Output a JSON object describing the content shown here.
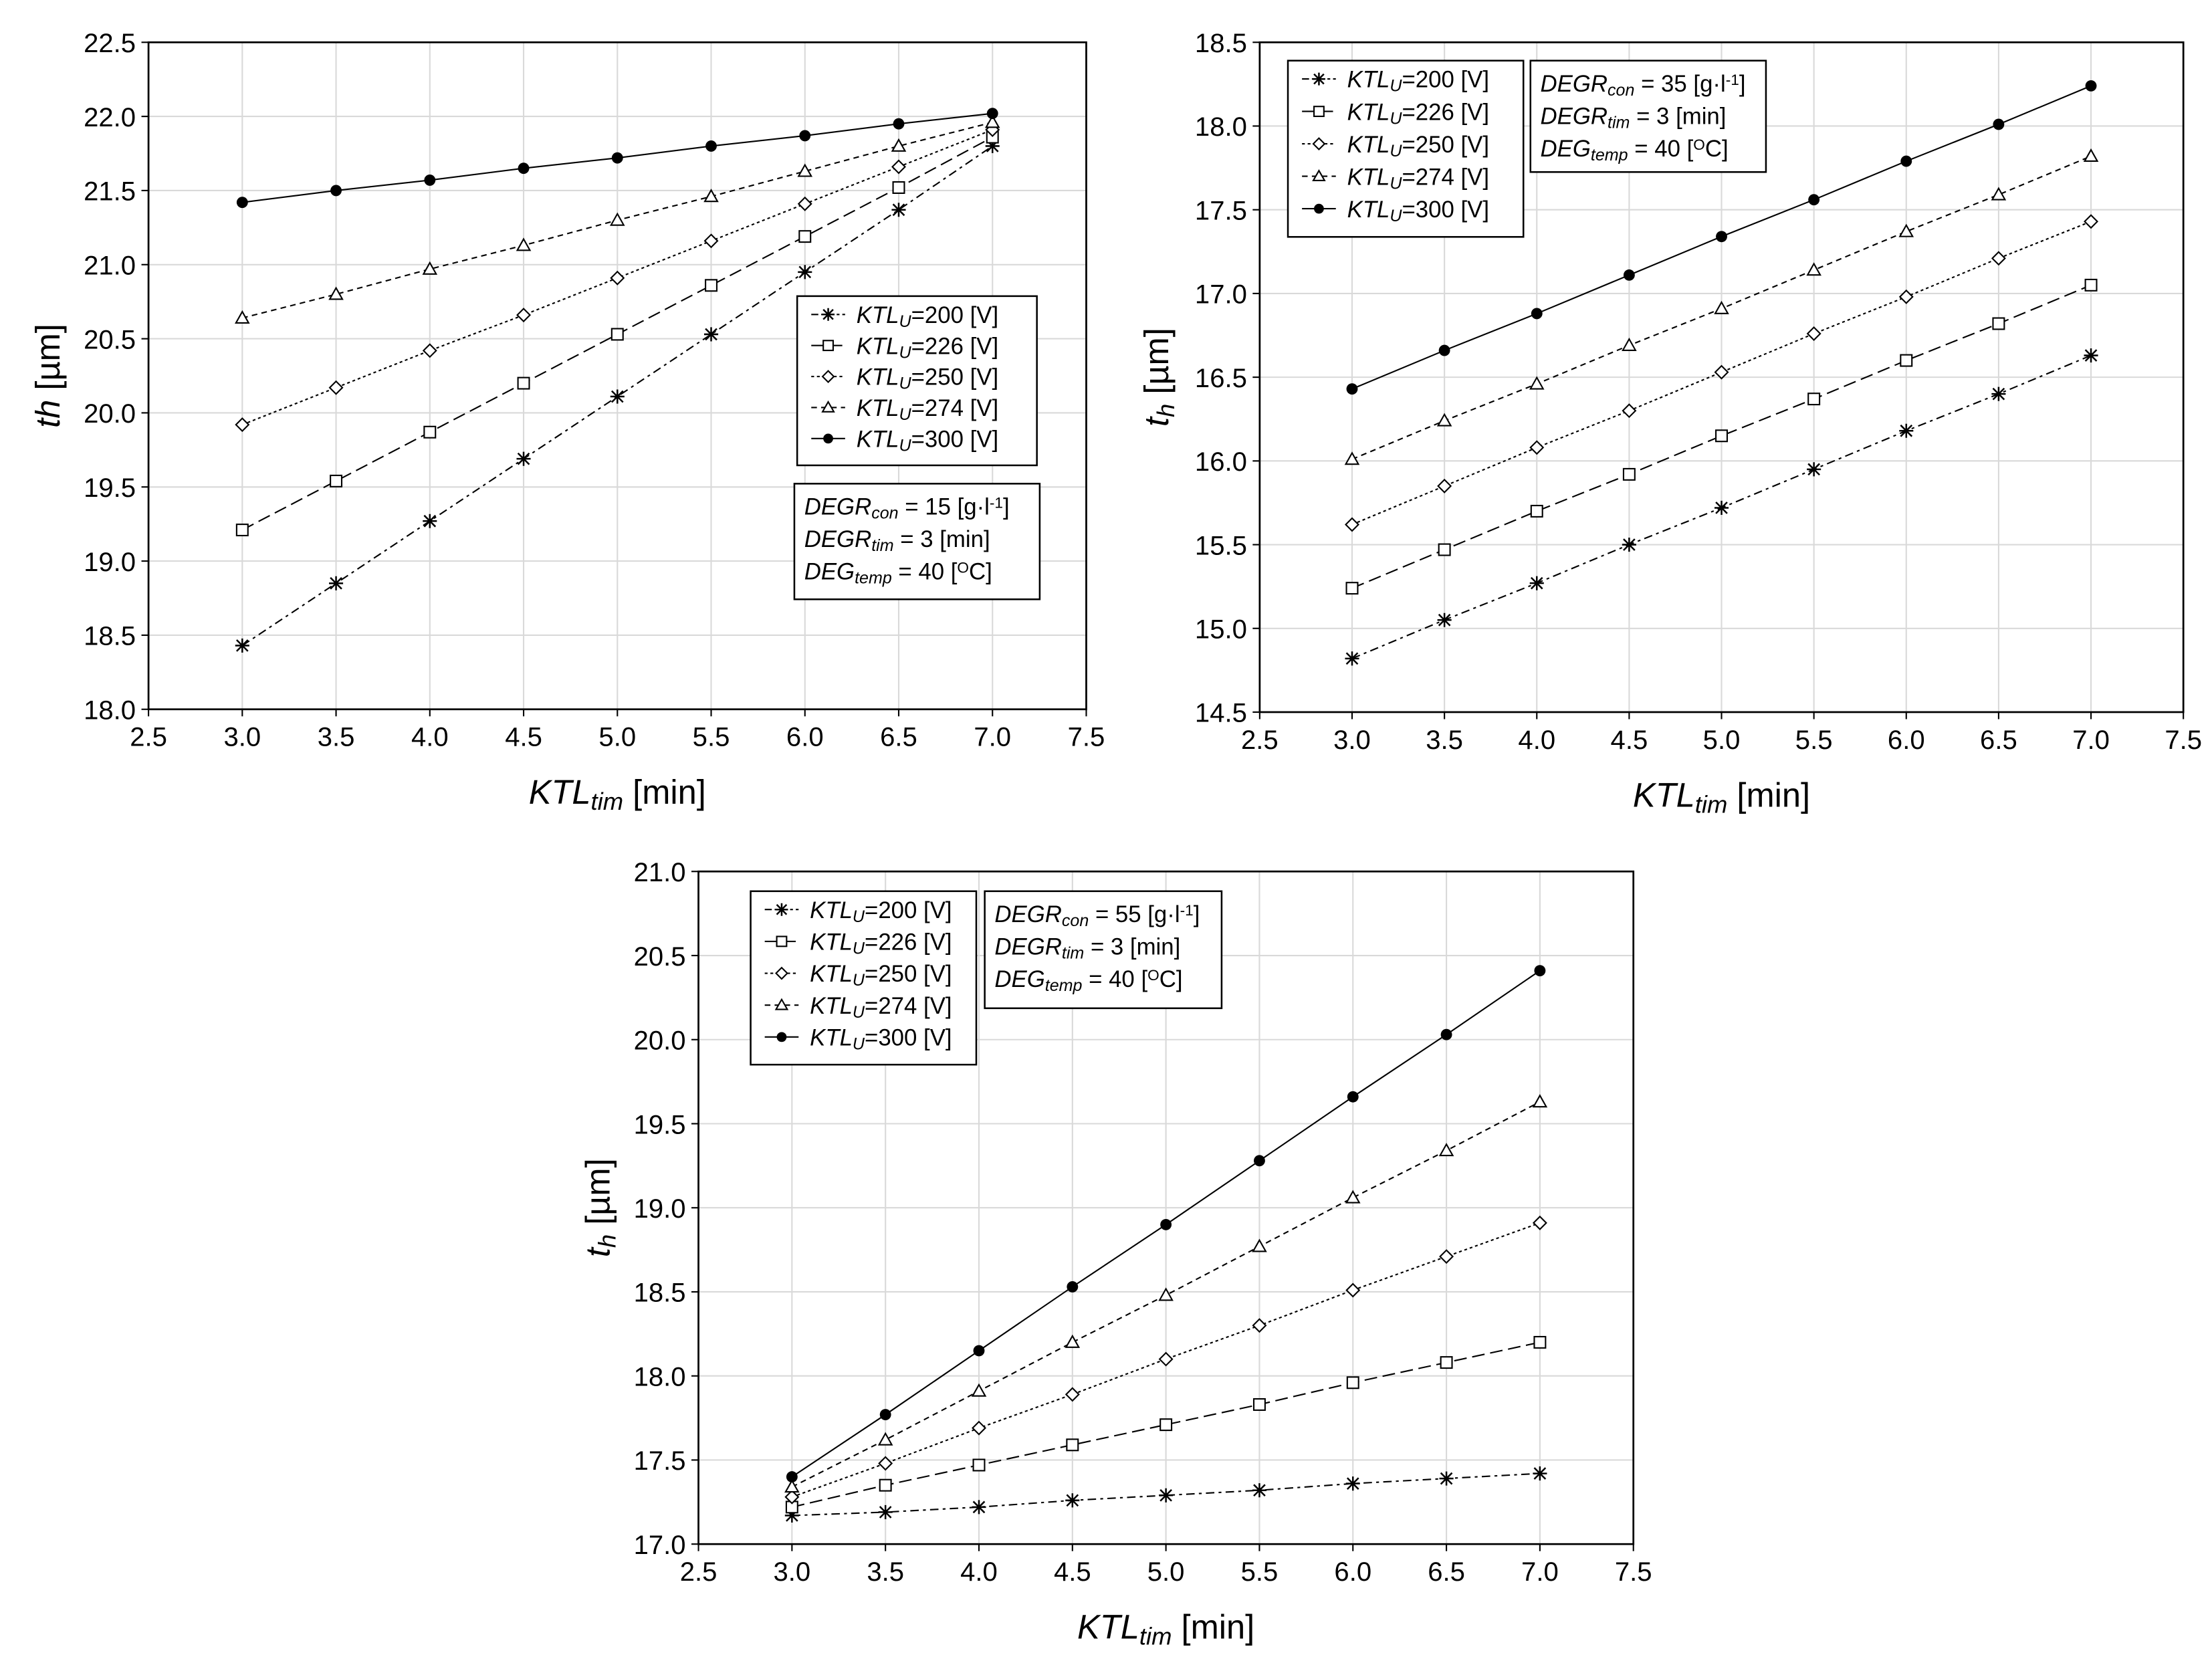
{
  "styles": {
    "200": {
      "marker": "asterisk",
      "dash": "6 3 2 3"
    },
    "226": {
      "marker": "square",
      "dash": "9 4"
    },
    "250": {
      "marker": "diamond",
      "dash": "2 2"
    },
    "274": {
      "marker": "triangle",
      "dash": "4 3"
    },
    "300": {
      "marker": "filled-circle",
      "dash": ""
    }
  },
  "chart_data": [
    {
      "type": "line",
      "xlabel": [
        {
          "t": "KTL",
          "s": "i"
        },
        {
          "t": "tim",
          "s": "isub"
        },
        {
          "t": "  [min]",
          "s": "n"
        }
      ],
      "ylabel": [
        {
          "t": "th",
          "s": "i"
        },
        {
          "t": " [µm]",
          "s": "n"
        }
      ],
      "xlim": [
        2.5,
        7.5
      ],
      "ylim": [
        18.0,
        22.5
      ],
      "xticks": [
        "2.5",
        "3.0",
        "3.5",
        "4.0",
        "4.5",
        "5.0",
        "5.5",
        "6.0",
        "6.5",
        "7.0",
        "7.5"
      ],
      "yticks": [
        "18.0",
        "18.5",
        "19.0",
        "19.5",
        "20.0",
        "20.5",
        "21.0",
        "21.5",
        "22.0",
        "22.5"
      ],
      "grid": true,
      "x": [
        3.0,
        3.5,
        4.0,
        4.5,
        5.0,
        5.5,
        6.0,
        6.5,
        7.0
      ],
      "series": [
        {
          "key": "200",
          "name": "KTL_U=200 [V]",
          "values": [
            18.43,
            18.85,
            19.27,
            19.69,
            20.11,
            20.53,
            20.95,
            21.37,
            21.8
          ]
        },
        {
          "key": "226",
          "name": "KTL_U=226 [V]",
          "values": [
            19.21,
            19.54,
            19.87,
            20.2,
            20.53,
            20.86,
            21.19,
            21.52,
            21.86
          ]
        },
        {
          "key": "250",
          "name": "KTL_U=250 [V]",
          "values": [
            19.92,
            20.17,
            20.42,
            20.66,
            20.91,
            21.16,
            21.41,
            21.66,
            21.91
          ]
        },
        {
          "key": "274",
          "name": "KTL_U=274 [V]",
          "values": [
            20.64,
            20.8,
            20.97,
            21.13,
            21.3,
            21.46,
            21.63,
            21.8,
            21.96
          ]
        },
        {
          "key": "300",
          "name": "KTL_U=300 [V]",
          "values": [
            21.42,
            21.5,
            21.57,
            21.65,
            21.72,
            21.8,
            21.87,
            21.95,
            22.02
          ]
        }
      ],
      "legend_placement": "center-right",
      "legend": [
        [
          {
            "t": "KTL",
            "s": "i"
          },
          {
            "t": "U",
            "s": "isub"
          },
          {
            "t": "=200  [V]",
            "s": "n"
          }
        ],
        [
          {
            "t": "KTL",
            "s": "i"
          },
          {
            "t": "U",
            "s": "isub"
          },
          {
            "t": "=226  [V]",
            "s": "n"
          }
        ],
        [
          {
            "t": "KTL",
            "s": "i"
          },
          {
            "t": "U",
            "s": "isub"
          },
          {
            "t": "=250  [V]",
            "s": "n"
          }
        ],
        [
          {
            "t": "KTL",
            "s": "i"
          },
          {
            "t": "U",
            "s": "isub"
          },
          {
            "t": "=274 [V]",
            "s": "n"
          }
        ],
        [
          {
            "t": "KTL",
            "s": "i"
          },
          {
            "t": "U",
            "s": "isub"
          },
          {
            "t": "=300  [V]",
            "s": "n"
          }
        ]
      ],
      "params": [
        [
          {
            "t": "DEGR",
            "s": "i"
          },
          {
            "t": "con",
            "s": "isub"
          },
          {
            "t": " = 15 [g·l",
            "s": "n"
          },
          {
            "t": "-1",
            "s": "sup"
          },
          {
            "t": "]",
            "s": "n"
          }
        ],
        [
          {
            "t": "DEGR",
            "s": "i"
          },
          {
            "t": "tim",
            "s": "isub"
          },
          {
            "t": " = 3 [min]",
            "s": "n"
          }
        ],
        [
          {
            "t": "DEG",
            "s": "i"
          },
          {
            "t": "temp",
            "s": "isub"
          },
          {
            "t": " = 40 [",
            "s": "n"
          },
          {
            "t": "O",
            "s": "sup"
          },
          {
            "t": "C]",
            "s": "n"
          }
        ]
      ]
    },
    {
      "type": "line",
      "xlabel": [
        {
          "t": "KTL",
          "s": "i"
        },
        {
          "t": "tim",
          "s": "isub"
        },
        {
          "t": "  [min]",
          "s": "n"
        }
      ],
      "ylabel": [
        {
          "t": "t",
          "s": "i"
        },
        {
          "t": "h",
          "s": "isub"
        },
        {
          "t": " [µm]",
          "s": "n"
        }
      ],
      "xlim": [
        2.5,
        7.5
      ],
      "ylim": [
        14.5,
        18.5
      ],
      "xticks": [
        "2.5",
        "3.0",
        "3.5",
        "4.0",
        "4.5",
        "5.0",
        "5.5",
        "6.0",
        "6.5",
        "7.0",
        "7.5"
      ],
      "yticks": [
        "14.5",
        "15.0",
        "15.5",
        "16.0",
        "16.5",
        "17.0",
        "17.5",
        "18.0",
        "18.5"
      ],
      "grid": true,
      "x": [
        3.0,
        3.5,
        4.0,
        4.5,
        5.0,
        5.5,
        6.0,
        6.5,
        7.0
      ],
      "series": [
        {
          "key": "200",
          "name": "KTL_U=200 [V]",
          "values": [
            14.82,
            15.05,
            15.27,
            15.5,
            15.72,
            15.95,
            16.18,
            16.4,
            16.63
          ]
        },
        {
          "key": "226",
          "name": "KTL_U=226 [V]",
          "values": [
            15.24,
            15.47,
            15.7,
            15.92,
            16.15,
            16.37,
            16.6,
            16.82,
            17.05
          ]
        },
        {
          "key": "250",
          "name": "KTL_U=250 [V]",
          "values": [
            15.62,
            15.85,
            16.08,
            16.3,
            16.53,
            16.76,
            16.98,
            17.21,
            17.43
          ]
        },
        {
          "key": "274",
          "name": "KTL_U=274 [V]",
          "values": [
            16.01,
            16.24,
            16.46,
            16.69,
            16.91,
            17.14,
            17.37,
            17.59,
            17.82
          ]
        },
        {
          "key": "300",
          "name": "KTL_U=300 [V]",
          "values": [
            16.43,
            16.66,
            16.88,
            17.11,
            17.34,
            17.56,
            17.79,
            18.01,
            18.24
          ]
        }
      ],
      "legend_placement": "top-left",
      "legend": [
        [
          {
            "t": "KTL",
            "s": "i"
          },
          {
            "t": "U",
            "s": "isub"
          },
          {
            "t": "=200  [V]",
            "s": "n"
          }
        ],
        [
          {
            "t": "KTL",
            "s": "i"
          },
          {
            "t": "U",
            "s": "isub"
          },
          {
            "t": "=226  [V]",
            "s": "n"
          }
        ],
        [
          {
            "t": "KTL",
            "s": "i"
          },
          {
            "t": "U",
            "s": "isub"
          },
          {
            "t": "=250  [V]",
            "s": "n"
          }
        ],
        [
          {
            "t": "KTL",
            "s": "i"
          },
          {
            "t": "U",
            "s": "isub"
          },
          {
            "t": "=274 [V]",
            "s": "n"
          }
        ],
        [
          {
            "t": "KTL",
            "s": "i"
          },
          {
            "t": "U",
            "s": "isub"
          },
          {
            "t": "=300  [V]",
            "s": "n"
          }
        ]
      ],
      "params": [
        [
          {
            "t": "DEGR",
            "s": "i"
          },
          {
            "t": "con",
            "s": "isub"
          },
          {
            "t": " = 35 [g·l",
            "s": "n"
          },
          {
            "t": "-1",
            "s": "sup"
          },
          {
            "t": "]",
            "s": "n"
          }
        ],
        [
          {
            "t": "DEGR",
            "s": "i"
          },
          {
            "t": "tim",
            "s": "isub"
          },
          {
            "t": " = 3 [min]",
            "s": "n"
          }
        ],
        [
          {
            "t": "DEG",
            "s": "i"
          },
          {
            "t": "temp",
            "s": "isub"
          },
          {
            "t": " = 40 [",
            "s": "n"
          },
          {
            "t": "O",
            "s": "sup"
          },
          {
            "t": "C]",
            "s": "n"
          }
        ]
      ]
    },
    {
      "type": "line",
      "xlabel": [
        {
          "t": "KTL",
          "s": "i"
        },
        {
          "t": "tim",
          "s": "isub"
        },
        {
          "t": "  [min]",
          "s": "n"
        }
      ],
      "ylabel": [
        {
          "t": "t",
          "s": "i"
        },
        {
          "t": "h",
          "s": "isub"
        },
        {
          "t": " [µm]",
          "s": "n"
        }
      ],
      "xlim": [
        2.5,
        7.5
      ],
      "ylim": [
        17.0,
        21.0
      ],
      "xticks": [
        "2.5",
        "3.0",
        "3.5",
        "4.0",
        "4.5",
        "5.0",
        "5.5",
        "6.0",
        "6.5",
        "7.0",
        "7.5"
      ],
      "yticks": [
        "17.0",
        "17.5",
        "18.0",
        "18.5",
        "19.0",
        "19.5",
        "20.0",
        "20.5",
        "21.0"
      ],
      "grid": true,
      "x": [
        3.0,
        3.5,
        4.0,
        4.5,
        5.0,
        5.5,
        6.0,
        6.5,
        7.0
      ],
      "series": [
        {
          "key": "200",
          "name": "KTL_U=200 [V]",
          "values": [
            17.17,
            17.19,
            17.22,
            17.26,
            17.29,
            17.32,
            17.36,
            17.39,
            17.42
          ]
        },
        {
          "key": "226",
          "name": "KTL_U=226 [V]",
          "values": [
            17.22,
            17.35,
            17.47,
            17.59,
            17.71,
            17.83,
            17.96,
            18.08,
            18.2
          ]
        },
        {
          "key": "250",
          "name": "KTL_U=250 [V]",
          "values": [
            17.28,
            17.48,
            17.69,
            17.89,
            18.1,
            18.3,
            18.51,
            18.71,
            18.91
          ]
        },
        {
          "key": "274",
          "name": "KTL_U=274 [V]",
          "values": [
            17.34,
            17.62,
            17.91,
            18.2,
            18.48,
            18.77,
            19.06,
            19.34,
            19.63
          ]
        },
        {
          "key": "300",
          "name": "KTL_U=300 [V]",
          "values": [
            17.4,
            17.77,
            18.15,
            18.53,
            18.9,
            19.28,
            19.66,
            20.03,
            20.41
          ]
        }
      ],
      "legend_placement": "top-left",
      "legend": [
        [
          {
            "t": "KTL",
            "s": "i"
          },
          {
            "t": "U",
            "s": "isub"
          },
          {
            "t": "=200  [V]",
            "s": "n"
          }
        ],
        [
          {
            "t": "KTL",
            "s": "i"
          },
          {
            "t": "U",
            "s": "isub"
          },
          {
            "t": "=226  [V]",
            "s": "n"
          }
        ],
        [
          {
            "t": "KTL",
            "s": "i"
          },
          {
            "t": "U",
            "s": "isub"
          },
          {
            "t": "=250  [V]",
            "s": "n"
          }
        ],
        [
          {
            "t": "KTL",
            "s": "i"
          },
          {
            "t": "U",
            "s": "isub"
          },
          {
            "t": "=274 [V]",
            "s": "n"
          }
        ],
        [
          {
            "t": "KTL",
            "s": "i"
          },
          {
            "t": "U",
            "s": "isub"
          },
          {
            "t": "=300  [V]",
            "s": "n"
          }
        ]
      ],
      "params": [
        [
          {
            "t": "DEGR",
            "s": "i"
          },
          {
            "t": "con",
            "s": "isub"
          },
          {
            "t": " = 55 [g·l",
            "s": "n"
          },
          {
            "t": "-1",
            "s": "sup"
          },
          {
            "t": "]",
            "s": "n"
          }
        ],
        [
          {
            "t": "DEGR",
            "s": "i"
          },
          {
            "t": "tim",
            "s": "isub"
          },
          {
            "t": " = 3 [min]",
            "s": "n"
          }
        ],
        [
          {
            "t": "DEG",
            "s": "i"
          },
          {
            "t": "temp",
            "s": "isub"
          },
          {
            "t": " = 40 [",
            "s": "n"
          },
          {
            "t": "O",
            "s": "sup"
          },
          {
            "t": "C]",
            "s": "n"
          }
        ]
      ]
    }
  ]
}
